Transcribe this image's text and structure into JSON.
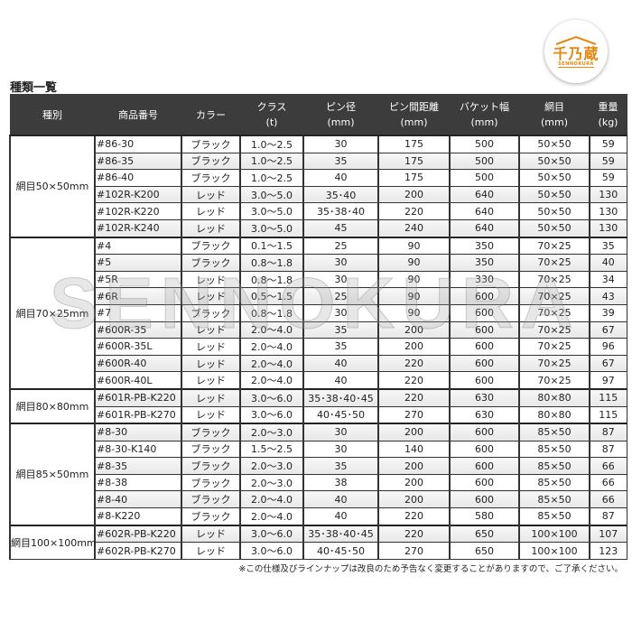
{
  "logo": {
    "text": "千乃蔵",
    "subtext": "SENNOKURA",
    "color": "#e8860c"
  },
  "watermark": "SENNOKURA",
  "title": "種類一覧",
  "headers": [
    [
      "種別",
      ""
    ],
    [
      "商品番号",
      ""
    ],
    [
      "カラー",
      ""
    ],
    [
      "クラス",
      "(t)"
    ],
    [
      "ピン径",
      "(mm)"
    ],
    [
      "ピン間距離",
      "(mm)"
    ],
    [
      "バケット幅",
      "(mm)"
    ],
    [
      "網目",
      "(mm)"
    ],
    [
      "重量",
      "(kg)"
    ]
  ],
  "groups": [
    {
      "label": "網目50×50mm",
      "rows": [
        [
          "#86-30",
          "ブラック",
          "1.0～2.5",
          "30",
          "175",
          "500",
          "50×50",
          "59"
        ],
        [
          "#86-35",
          "ブラック",
          "1.0～2.5",
          "35",
          "175",
          "500",
          "50×50",
          "59"
        ],
        [
          "#86-40",
          "ブラック",
          "1.0～2.5",
          "40",
          "175",
          "500",
          "50×50",
          "59"
        ],
        [
          "#102R-K200",
          "レッド",
          "3.0～5.0",
          "35･40",
          "200",
          "640",
          "50×50",
          "130"
        ],
        [
          "#102R-K220",
          "レッド",
          "3.0～5.0",
          "35･38･40",
          "220",
          "640",
          "50×50",
          "130"
        ],
        [
          "#102R-K240",
          "レッド",
          "3.0～5.0",
          "45",
          "240",
          "640",
          "50×50",
          "130"
        ]
      ]
    },
    {
      "label": "網目70×25mm",
      "rows": [
        [
          "#4",
          "ブラック",
          "0.1～1.5",
          "25",
          "90",
          "350",
          "70×25",
          "35"
        ],
        [
          "#5",
          "ブラック",
          "0.8～1.8",
          "30",
          "90",
          "350",
          "70×25",
          "40"
        ],
        [
          "#5R",
          "レッド",
          "0.8～1.8",
          "30",
          "90",
          "330",
          "70×25",
          "34"
        ],
        [
          "#6R",
          "レッド",
          "0.5～1.5",
          "25",
          "90",
          "600",
          "70×25",
          "43"
        ],
        [
          "#7",
          "ブラック",
          "0.8～1.8",
          "30",
          "90",
          "600",
          "70×25",
          "39"
        ],
        [
          "#600R-35",
          "レッド",
          "2.0～4.0",
          "35",
          "200",
          "600",
          "70×25",
          "67"
        ],
        [
          "#600R-35L",
          "レッド",
          "2.0～4.0",
          "35",
          "200",
          "600",
          "70×25",
          "96"
        ],
        [
          "#600R-40",
          "レッド",
          "2.0～4.0",
          "40",
          "220",
          "600",
          "70×25",
          "67"
        ],
        [
          "#600R-40L",
          "レッド",
          "2.0～4.0",
          "40",
          "220",
          "600",
          "70×25",
          "97"
        ]
      ]
    },
    {
      "label": "網目80×80mm",
      "rows": [
        [
          "#601R-PB-K220",
          "レッド",
          "3.0～6.0",
          "35･38･40･45",
          "220",
          "630",
          "80×80",
          "115"
        ],
        [
          "#601R-PB-K270",
          "レッド",
          "3.0～6.0",
          "40･45･50",
          "270",
          "630",
          "80×80",
          "115"
        ]
      ]
    },
    {
      "label": "網目85×50mm",
      "rows": [
        [
          "#8-30",
          "ブラック",
          "2.0～3.0",
          "30",
          "200",
          "600",
          "85×50",
          "87"
        ],
        [
          "#8-30-K140",
          "ブラック",
          "1.5～2.5",
          "30",
          "140",
          "600",
          "85×50",
          "87"
        ],
        [
          "#8-35",
          "ブラック",
          "2.0～3.0",
          "35",
          "200",
          "600",
          "85×50",
          "66"
        ],
        [
          "#8-38",
          "ブラック",
          "2.0～3.0",
          "38",
          "200",
          "600",
          "85×50",
          "66"
        ],
        [
          "#8-40",
          "ブラック",
          "2.0～4.0",
          "40",
          "200",
          "600",
          "85×50",
          "66"
        ],
        [
          "#8-K220",
          "ブラック",
          "2.0～4.0",
          "40",
          "220",
          "580",
          "85×50",
          "87"
        ]
      ]
    },
    {
      "label": "網目100×100mm",
      "rows": [
        [
          "#602R-PB-K220",
          "レッド",
          "3.0～6.0",
          "35･38･40･45",
          "220",
          "650",
          "100×100",
          "107"
        ],
        [
          "#602R-PB-K270",
          "レッド",
          "3.0～6.0",
          "40･45･50",
          "270",
          "650",
          "100×100",
          "123"
        ]
      ]
    }
  ],
  "note": "※この仕様及びラインナップは改良のため予告なく変更することがありますので、ご了承ください。"
}
